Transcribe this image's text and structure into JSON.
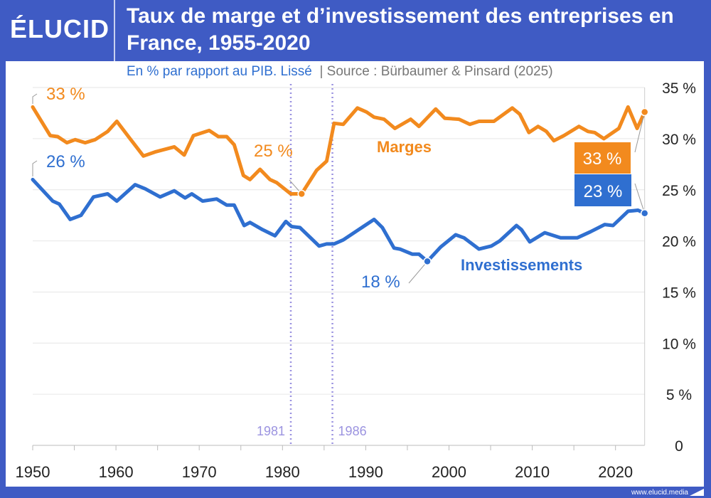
{
  "header": {
    "logo": "ÉLUCID",
    "title": "Taux de marge et d’investissement des entreprises en France, 1955-2020",
    "subtitle": "En % par rapport au PIB. Lissé",
    "source": "|  Source : Bürbaumer & Pinsard (2025)"
  },
  "footer": {
    "url": "www.elucid.media"
  },
  "colors": {
    "header": "#3f5bc4",
    "marges": "#f28a1e",
    "investissements": "#2f6fd0",
    "markers": "#9b93e0"
  },
  "chart_data": {
    "type": "line",
    "title": "Taux de marge et d’investissement des entreprises en France, 1955-2020",
    "xlim": [
      1950,
      2023.5
    ],
    "ylim": [
      0,
      35
    ],
    "x_ticks": [
      "1950",
      "1960",
      "1970",
      "1980",
      "1990",
      "2000",
      "2010",
      "2020"
    ],
    "x_tick_values": [
      1950,
      1960,
      1970,
      1980,
      1990,
      2000,
      2010,
      2020
    ],
    "y_ticks": [
      "0",
      "5 %",
      "10 %",
      "15 %",
      "20 %",
      "25 %",
      "30 %",
      "35 %"
    ],
    "y_tick_values": [
      0,
      5,
      10,
      15,
      20,
      25,
      30,
      35
    ],
    "y_axis_side": "right",
    "grid": true,
    "series": [
      {
        "name": "Marges",
        "color": "#f28a1e",
        "x": [
          1950,
          1952.1,
          1953,
          1954.1,
          1955.1,
          1956.3,
          1957.5,
          1959,
          1960.1,
          1961.6,
          1963.3,
          1964.7,
          1967,
          1968.2,
          1969.3,
          1971.2,
          1972.3,
          1973.3,
          1974.2,
          1975.3,
          1976.1,
          1977.3,
          1978.5,
          1979.3,
          1981,
          1982.3,
          1984.1,
          1985.3,
          1986.2,
          1987.3,
          1989,
          1990.1,
          1991,
          1992.2,
          1993.5,
          1995.4,
          1996.4,
          1998.4,
          1999.5,
          2001.2,
          2002.5,
          2003.6,
          2005.4,
          2007.6,
          2008.5,
          2009.6,
          2010.7,
          2011.7,
          2012.6,
          2013.8,
          2015.6,
          2016.7,
          2017.5,
          2018.6,
          2020.4,
          2021.5,
          2022.6,
          2023.5
        ],
        "y": [
          33.1,
          30.3,
          30.2,
          29.6,
          29.9,
          29.6,
          29.9,
          30.7,
          31.7,
          30.1,
          28.3,
          28.7,
          29.2,
          28.4,
          30.3,
          30.8,
          30.2,
          30.2,
          29.4,
          26.4,
          26.0,
          27.0,
          26.0,
          25.7,
          24.6,
          24.6,
          26.9,
          27.8,
          31.5,
          31.4,
          33.0,
          32.6,
          32.1,
          31.9,
          31.0,
          31.9,
          31.2,
          32.9,
          32.0,
          31.9,
          31.4,
          31.7,
          31.7,
          33.0,
          32.4,
          30.6,
          31.2,
          30.7,
          29.8,
          30.3,
          31.2,
          30.7,
          30.6,
          30.0,
          31.0,
          33.1,
          31.0,
          32.6
        ]
      },
      {
        "name": "Investissements",
        "color": "#2f6fd0",
        "x": [
          1950,
          1952.4,
          1953.2,
          1954.5,
          1955.8,
          1957.3,
          1959,
          1960.1,
          1962.3,
          1963.5,
          1965.3,
          1967,
          1968.3,
          1969.1,
          1970.4,
          1972.1,
          1973.3,
          1974.2,
          1975.4,
          1976.1,
          1977.6,
          1979.1,
          1980.4,
          1981.1,
          1982.1,
          1984.4,
          1985.3,
          1986.2,
          1987.3,
          1991,
          1992,
          1993.4,
          1994.1,
          1995.6,
          1996.4,
          1997.4,
          1999,
          2000.8,
          2001.8,
          2003.6,
          2005.1,
          2006.1,
          2008.1,
          2008.7,
          2009.7,
          2011.5,
          2013.4,
          2015.4,
          2017,
          2018.7,
          2019.7,
          2021.5,
          2022.7,
          2023.5
        ],
        "y": [
          26.0,
          23.9,
          23.6,
          22.1,
          22.5,
          24.3,
          24.6,
          23.9,
          25.5,
          25.1,
          24.3,
          24.9,
          24.2,
          24.6,
          23.9,
          24.1,
          23.5,
          23.5,
          21.5,
          21.8,
          21.1,
          20.5,
          21.9,
          21.4,
          21.3,
          19.5,
          19.7,
          19.7,
          20.1,
          22.1,
          21.3,
          19.3,
          19.2,
          18.7,
          18.7,
          18.0,
          19.4,
          20.6,
          20.3,
          19.2,
          19.5,
          20.0,
          21.5,
          21.1,
          19.9,
          20.8,
          20.3,
          20.3,
          20.9,
          21.6,
          21.5,
          22.9,
          23.0,
          22.7
        ]
      }
    ],
    "markers": [
      {
        "label": "1981",
        "x": 1981
      },
      {
        "label": "1986",
        "x": 1986
      }
    ],
    "annotations": {
      "marges_start": "33 %",
      "invest_start": "26 %",
      "marges_min": "25 %",
      "invest_min": "18 %",
      "marges_end": "33 %",
      "invest_end": "23 %",
      "marges_label": "Marges",
      "invest_label": "Investissements"
    }
  }
}
